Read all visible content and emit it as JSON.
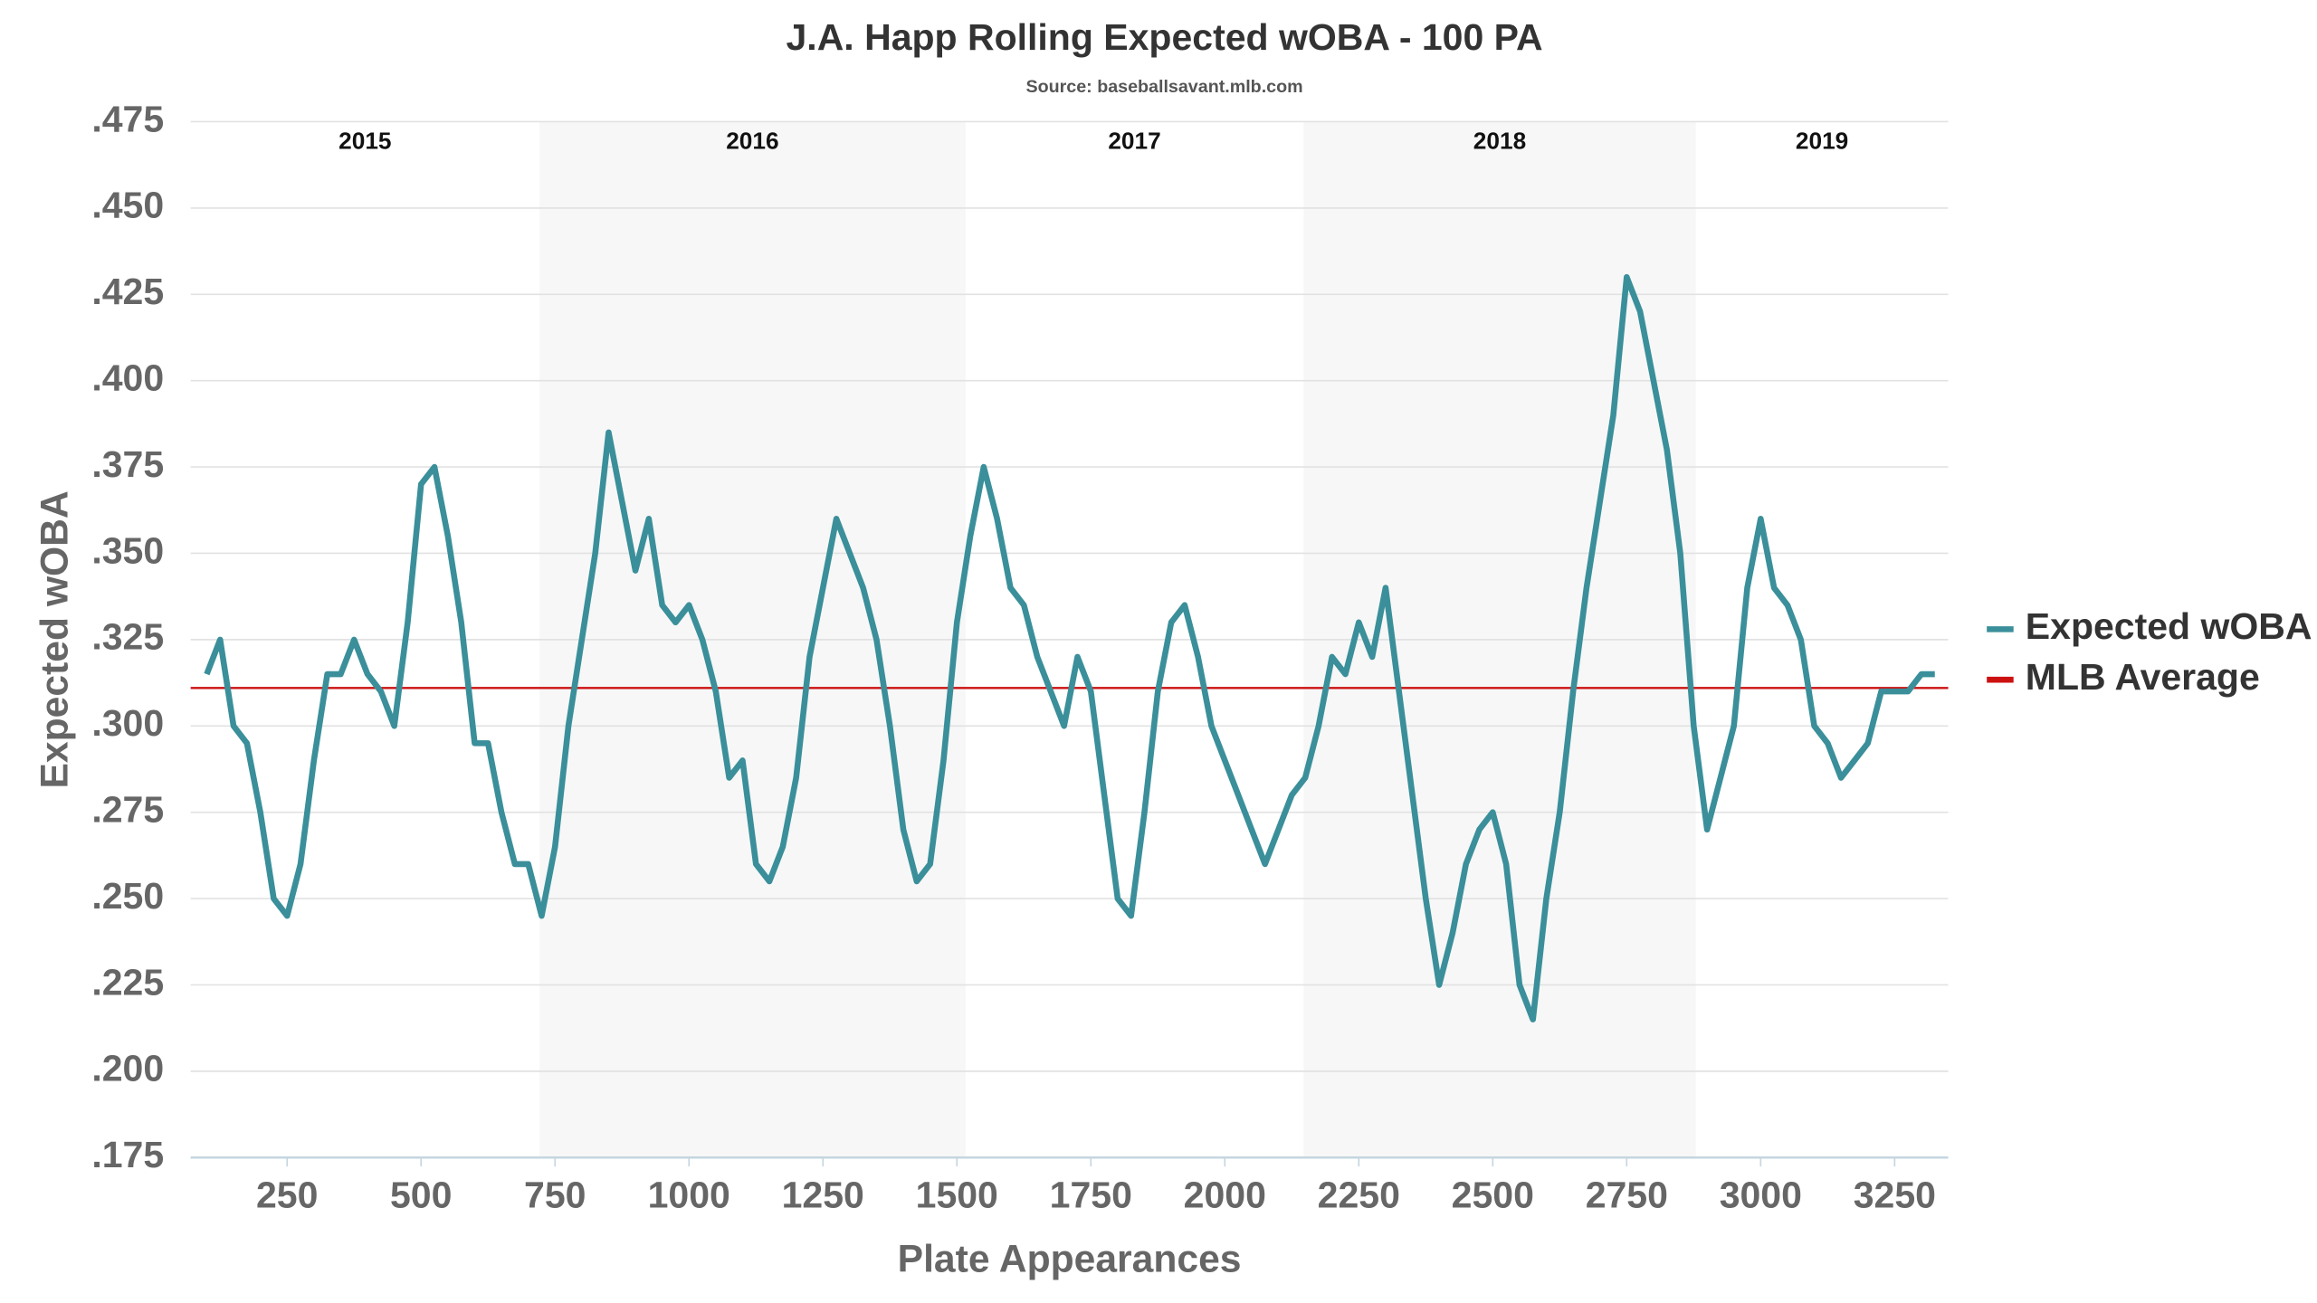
{
  "chart_data": {
    "type": "line",
    "title": "J.A. Happ Rolling Expected wOBA - 100 PA",
    "subtitle": "Source: baseballsavant.mlb.com",
    "x_label": "Plate Appearances",
    "y_label": "Expected wOBA",
    "xlim": [
      70,
      3350
    ],
    "ylim": [
      0.175,
      0.475
    ],
    "xticks": [
      250,
      500,
      750,
      1000,
      1250,
      1500,
      1750,
      2000,
      2250,
      2500,
      2750,
      3000,
      3250
    ],
    "yticks": [
      {
        "value": 0.175,
        "label": ".175"
      },
      {
        "value": 0.2,
        "label": ".200"
      },
      {
        "value": 0.225,
        "label": ".225"
      },
      {
        "value": 0.25,
        "label": ".250"
      },
      {
        "value": 0.275,
        "label": ".275"
      },
      {
        "value": 0.3,
        "label": ".300"
      },
      {
        "value": 0.325,
        "label": ".325"
      },
      {
        "value": 0.35,
        "label": ".350"
      },
      {
        "value": 0.375,
        "label": ".375"
      },
      {
        "value": 0.4,
        "label": ".400"
      },
      {
        "value": 0.425,
        "label": ".425"
      },
      {
        "value": 0.45,
        "label": ".450"
      },
      {
        "value": 0.475,
        "label": ".475"
      }
    ],
    "grid": true,
    "legend": "right",
    "periods": [
      {
        "label": "2015",
        "start": 70,
        "end": 721,
        "shaded": false
      },
      {
        "label": "2016",
        "start": 721,
        "end": 1516,
        "shaded": true
      },
      {
        "label": "2017",
        "start": 1516,
        "end": 2147,
        "shaded": false
      },
      {
        "label": "2018",
        "start": 2147,
        "end": 2879,
        "shaded": true
      },
      {
        "label": "2019",
        "start": 2879,
        "end": 3350,
        "shaded": false
      }
    ],
    "reference_lines": [
      {
        "name": "MLB Average",
        "value": 0.311,
        "color": "#cc1111"
      }
    ],
    "x": [
      100,
      125,
      150,
      175,
      200,
      225,
      250,
      275,
      300,
      325,
      350,
      375,
      400,
      425,
      450,
      475,
      500,
      525,
      550,
      575,
      600,
      625,
      650,
      675,
      700,
      725,
      750,
      775,
      800,
      825,
      850,
      875,
      900,
      925,
      950,
      975,
      1000,
      1025,
      1050,
      1075,
      1100,
      1125,
      1150,
      1175,
      1200,
      1225,
      1250,
      1275,
      1300,
      1325,
      1350,
      1375,
      1400,
      1425,
      1450,
      1475,
      1500,
      1525,
      1550,
      1575,
      1600,
      1625,
      1650,
      1675,
      1700,
      1725,
      1750,
      1775,
      1800,
      1825,
      1850,
      1875,
      1900,
      1925,
      1950,
      1975,
      2000,
      2025,
      2050,
      2075,
      2100,
      2125,
      2150,
      2175,
      2200,
      2225,
      2250,
      2275,
      2300,
      2325,
      2350,
      2375,
      2400,
      2425,
      2450,
      2475,
      2500,
      2525,
      2550,
      2575,
      2600,
      2625,
      2650,
      2675,
      2700,
      2725,
      2750,
      2775,
      2800,
      2825,
      2850,
      2875,
      2900,
      2925,
      2950,
      2975,
      3000,
      3025,
      3050,
      3075,
      3100,
      3125,
      3150,
      3175,
      3200,
      3225,
      3250,
      3275,
      3300,
      3325
    ],
    "series": [
      {
        "name": "Expected wOBA",
        "color": "#3a8f9a",
        "values": [
          0.315,
          0.325,
          0.3,
          0.295,
          0.275,
          0.25,
          0.245,
          0.26,
          0.29,
          0.315,
          0.315,
          0.325,
          0.315,
          0.31,
          0.3,
          0.33,
          0.37,
          0.375,
          0.355,
          0.33,
          0.295,
          0.295,
          0.275,
          0.26,
          0.26,
          0.245,
          0.265,
          0.3,
          0.325,
          0.35,
          0.385,
          0.365,
          0.345,
          0.36,
          0.335,
          0.33,
          0.335,
          0.325,
          0.31,
          0.285,
          0.29,
          0.26,
          0.255,
          0.265,
          0.285,
          0.32,
          0.34,
          0.36,
          0.35,
          0.34,
          0.325,
          0.3,
          0.27,
          0.255,
          0.26,
          0.29,
          0.33,
          0.355,
          0.375,
          0.36,
          0.34,
          0.335,
          0.32,
          0.31,
          0.3,
          0.32,
          0.31,
          0.28,
          0.25,
          0.245,
          0.275,
          0.31,
          0.33,
          0.335,
          0.32,
          0.3,
          0.29,
          0.28,
          0.27,
          0.26,
          0.27,
          0.28,
          0.285,
          0.3,
          0.32,
          0.315,
          0.33,
          0.32,
          0.34,
          0.31,
          0.28,
          0.25,
          0.225,
          0.24,
          0.26,
          0.27,
          0.275,
          0.26,
          0.225,
          0.215,
          0.25,
          0.275,
          0.31,
          0.34,
          0.365,
          0.39,
          0.43,
          0.42,
          0.4,
          0.38,
          0.35,
          0.3,
          0.27,
          0.285,
          0.3,
          0.34,
          0.36,
          0.34,
          0.335,
          0.325,
          0.3,
          0.295,
          0.285,
          0.29,
          0.295,
          0.31,
          0.31,
          0.31,
          0.315,
          0.315
        ]
      }
    ]
  }
}
